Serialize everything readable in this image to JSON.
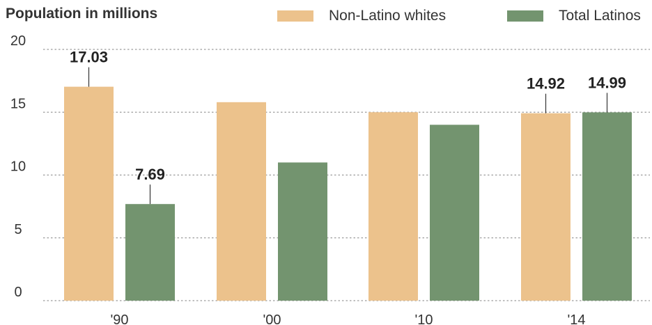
{
  "chart_data": {
    "type": "bar",
    "title": "Population in millions",
    "categories": [
      "'90",
      "'00",
      "'10",
      "'14"
    ],
    "series": [
      {
        "name": "Non-Latino whites",
        "color": "#ecc28c",
        "values": [
          17.03,
          15.8,
          15.0,
          14.92
        ]
      },
      {
        "name": "Total Latinos",
        "color": "#73946f",
        "values": [
          7.69,
          11.0,
          14.0,
          14.99
        ]
      }
    ],
    "data_labels": [
      {
        "series": 0,
        "index": 0,
        "text": "17.03"
      },
      {
        "series": 1,
        "index": 0,
        "text": "7.69"
      },
      {
        "series": 0,
        "index": 3,
        "text": "14.92"
      },
      {
        "series": 1,
        "index": 3,
        "text": "14.99"
      }
    ],
    "yticks": [
      "0",
      "5",
      "10",
      "15",
      "20"
    ],
    "ylim": [
      0,
      20
    ],
    "grid": true,
    "legend_position": "top-right"
  }
}
